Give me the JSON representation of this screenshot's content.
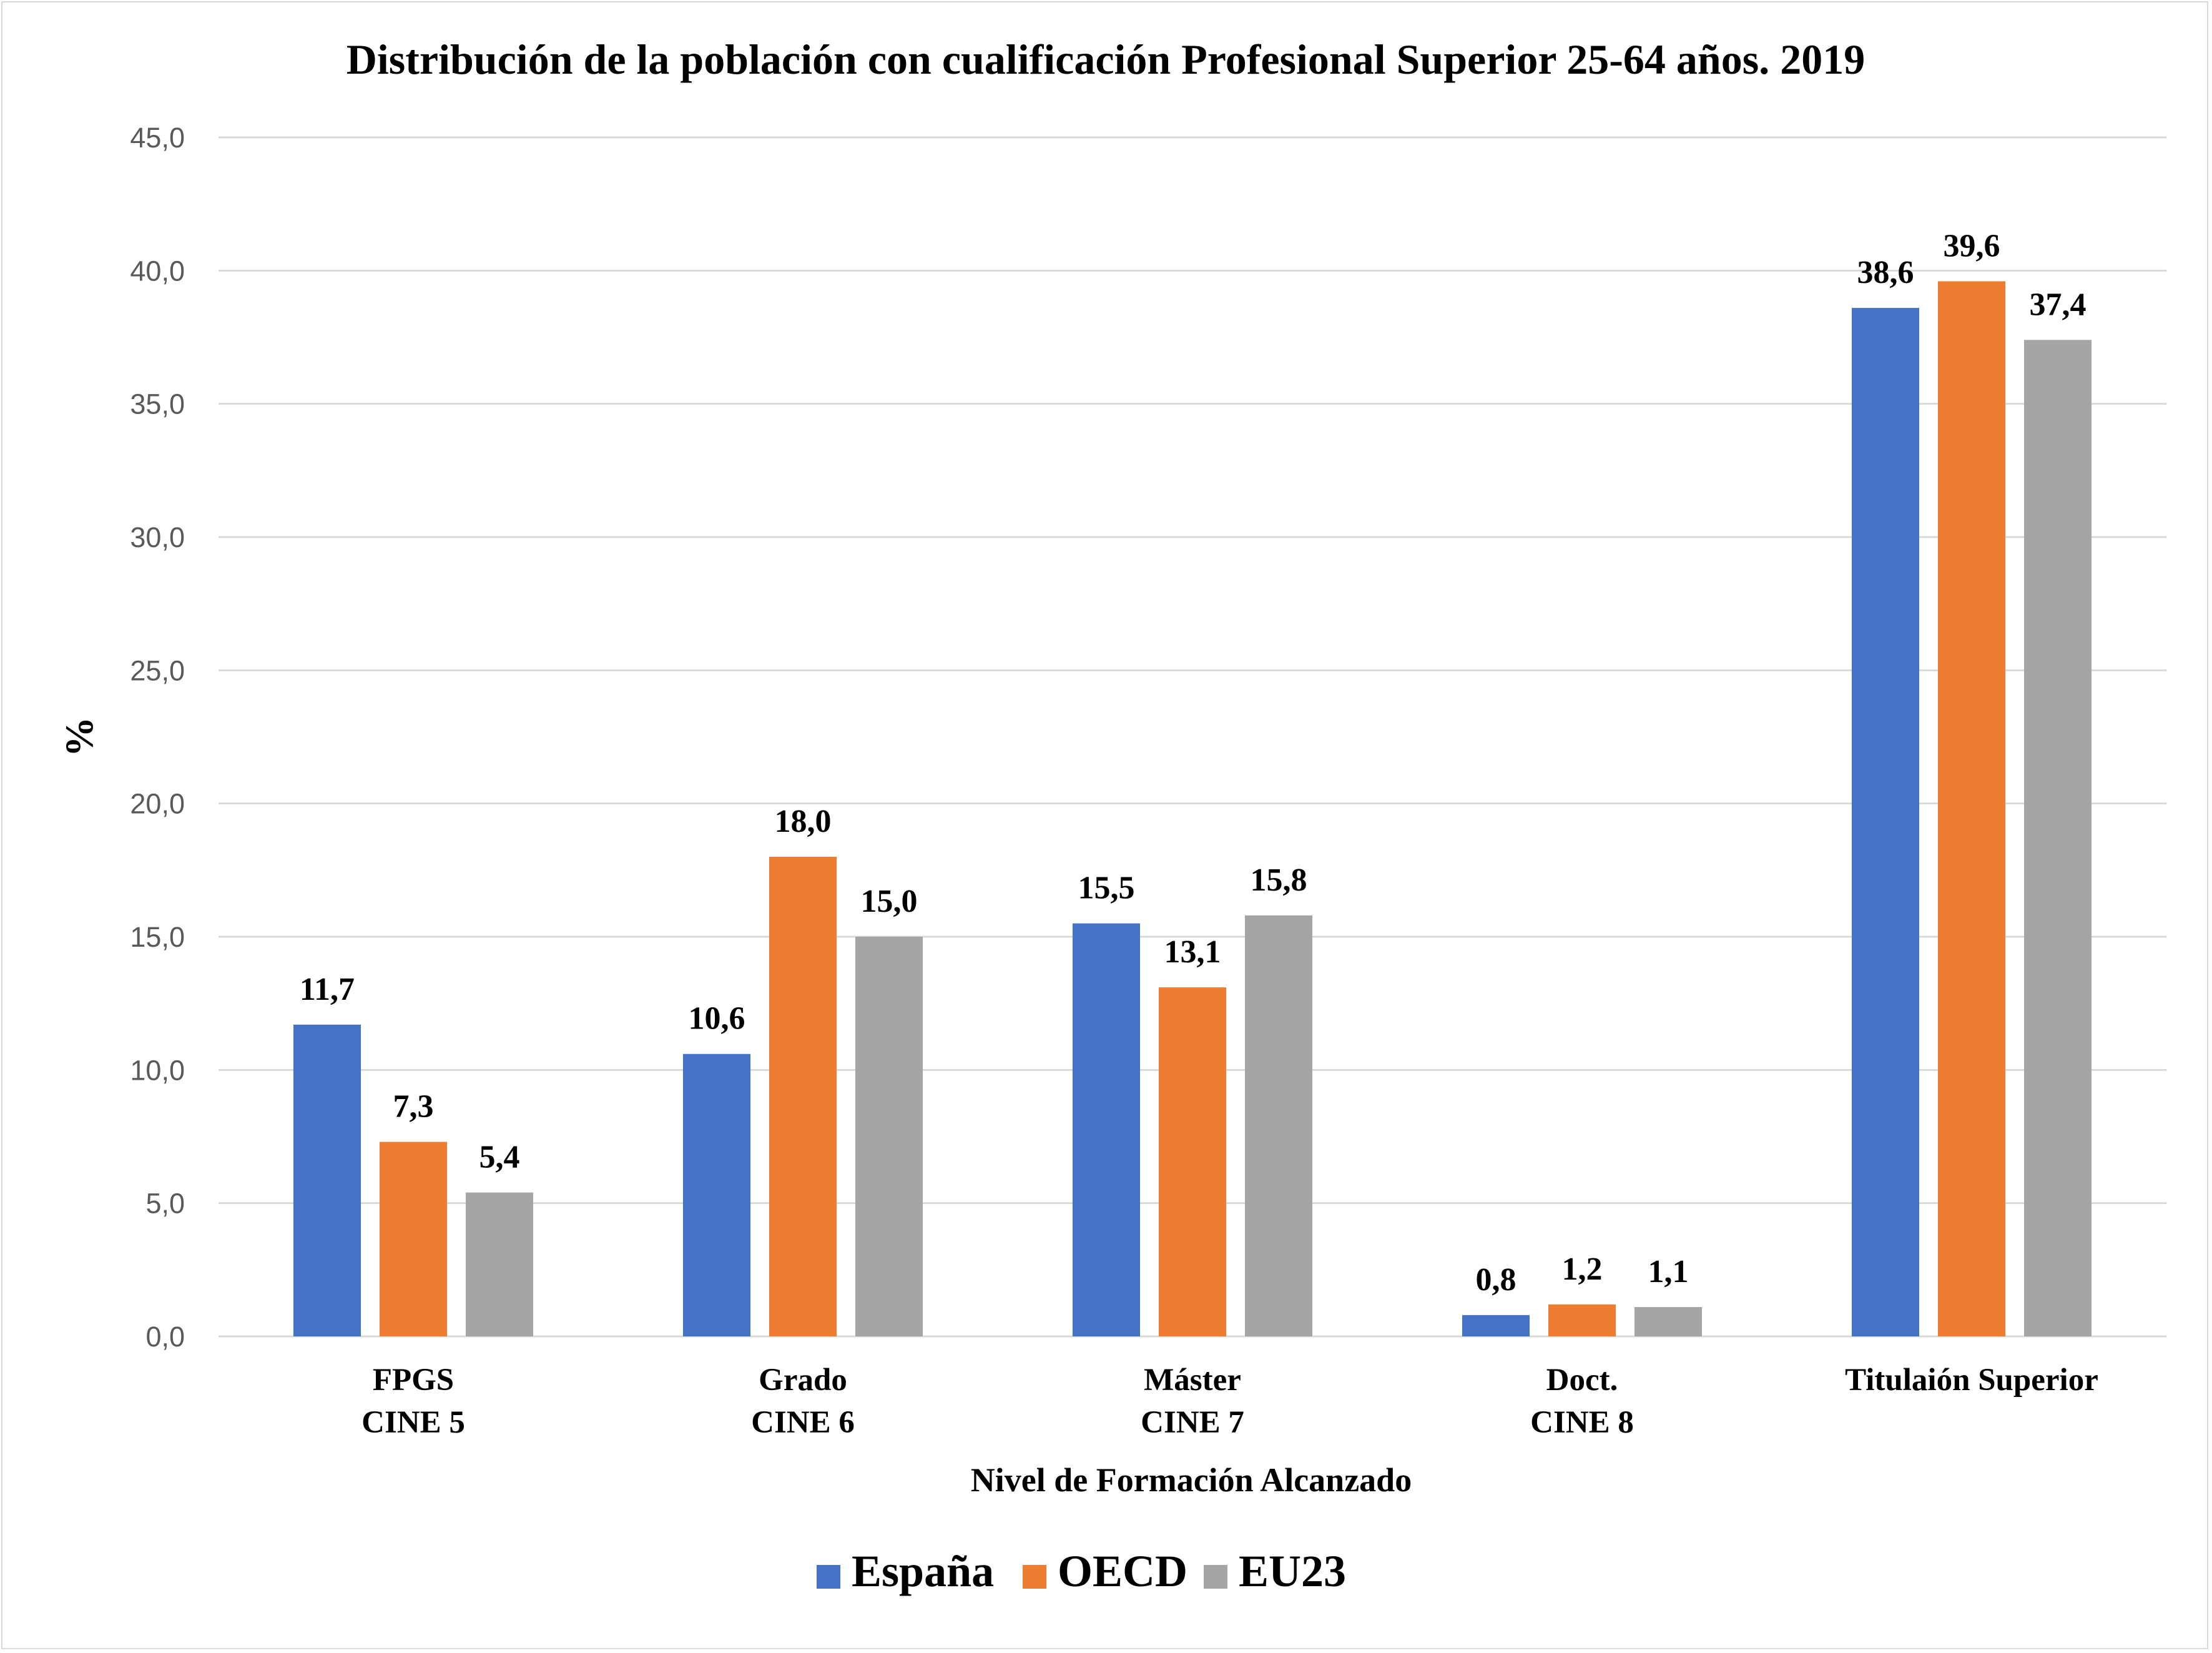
{
  "chart_data": {
    "type": "bar",
    "title": "Distribución de la población con cualificación Profesional Superior 25-64 años. 2019",
    "xlabel": "Nivel de Formación Alcanzado",
    "ylabel": "%",
    "ylim": [
      0,
      45
    ],
    "yticks": [
      "0,0",
      "5,0",
      "10,0",
      "15,0",
      "20,0",
      "25,0",
      "30,0",
      "35,0",
      "40,0",
      "45,0"
    ],
    "grid": true,
    "legend_position": "bottom",
    "categories": [
      [
        "FPGS",
        "CINE 5"
      ],
      [
        "Grado",
        "CINE 6"
      ],
      [
        "Máster",
        "CINE 7"
      ],
      [
        "Doct.",
        "CINE 8"
      ],
      [
        "Titulaión Superior"
      ]
    ],
    "series": [
      {
        "name": "España",
        "color": "#4472c4",
        "values": [
          11.7,
          10.6,
          15.5,
          0.8,
          38.6
        ],
        "labels": [
          "11,7",
          "10,6",
          "15,5",
          "0,8",
          "38,6"
        ]
      },
      {
        "name": "OECD",
        "color": "#ed7d31",
        "values": [
          7.3,
          18.0,
          13.1,
          1.2,
          39.6
        ],
        "labels": [
          "7,3",
          "18,0",
          "13,1",
          "1,2",
          "39,6"
        ]
      },
      {
        "name": "EU23",
        "color": "#a5a5a5",
        "values": [
          5.4,
          15.0,
          15.8,
          1.1,
          37.4
        ],
        "labels": [
          "5,4",
          "15,0",
          "15,8",
          "1,1",
          "37,4"
        ]
      }
    ]
  }
}
